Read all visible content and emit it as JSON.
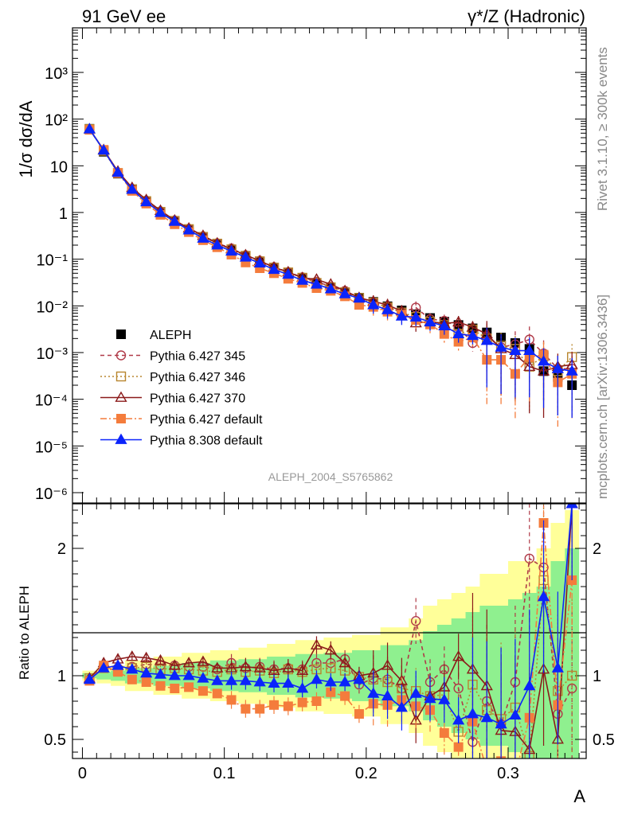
{
  "header": {
    "left": "91 GeV ee",
    "right": "γ*/Z (Hadronic)"
  },
  "side_labels": {
    "top": "Rivet 3.1.10, ≥ 300k events",
    "bottom": "mcplots.cern.ch [arXiv:1306.3436]"
  },
  "watermark": "ALEPH_2004_S5765862",
  "colors": {
    "ALEPH": "#000000",
    "P345": "#b03a48",
    "P346": "#b8862e",
    "P370": "#8b1a1a",
    "P6def": "#f47c3c",
    "P8def": "#0b24fb",
    "band_outer": "#ffff99",
    "band_inner": "#8ff08f"
  },
  "chart_data": [
    {
      "type": "line",
      "ylabel": "1/σ  dσ/dA",
      "yscale": "log",
      "ylim": [
        6e-07,
        9000
      ],
      "xlim": [
        -0.007,
        0.355
      ],
      "yticks": [
        "10⁻⁶",
        "10⁻⁵",
        "10⁻⁴",
        "10⁻³",
        "10⁻²",
        "10⁻¹",
        "1",
        "10",
        "10²",
        "10³"
      ],
      "legend": {
        "placement": "bottom-left"
      },
      "x": [
        0.005,
        0.015,
        0.025,
        0.035,
        0.045,
        0.055,
        0.065,
        0.075,
        0.085,
        0.095,
        0.105,
        0.115,
        0.125,
        0.135,
        0.145,
        0.155,
        0.165,
        0.175,
        0.185,
        0.195,
        0.205,
        0.215,
        0.225,
        0.235,
        0.245,
        0.255,
        0.265,
        0.275,
        0.285,
        0.295,
        0.305,
        0.315,
        0.325,
        0.335,
        0.345
      ],
      "series": [
        {
          "name": "ALEPH",
          "marker": "square",
          "values": [
            62,
            20,
            6.8,
            3.0,
            1.65,
            0.98,
            0.63,
            0.42,
            0.29,
            0.21,
            0.155,
            0.115,
            0.087,
            0.065,
            0.05,
            0.039,
            0.03,
            0.024,
            0.019,
            0.015,
            0.0122,
            0.0098,
            0.008,
            0.0066,
            0.0055,
            0.0046,
            0.0039,
            0.0033,
            0.0027,
            0.0021,
            0.0016,
            0.0012,
            0.0004,
            0.0003,
            0.0002
          ]
        },
        {
          "name": "Pythia 6.427 345",
          "marker": "open-circle",
          "values": [
            60,
            21.5,
            7.2,
            3.2,
            1.8,
            1.06,
            0.68,
            0.45,
            0.31,
            0.22,
            0.17,
            0.122,
            0.093,
            0.068,
            0.053,
            0.041,
            0.033,
            0.026,
            0.021,
            0.014,
            0.012,
            0.0095,
            0.0072,
            0.0092,
            0.0052,
            0.0048,
            0.0035,
            0.0016,
            0.0022,
            0.0013,
            0.0015,
            0.0019,
            0.00096,
            0.00045,
            0.00045
          ]
        },
        {
          "name": "Pythia 6.427 346",
          "marker": "open-square",
          "values": [
            61,
            21,
            7.0,
            3.15,
            1.75,
            1.03,
            0.66,
            0.44,
            0.3,
            0.215,
            0.162,
            0.118,
            0.09,
            0.066,
            0.052,
            0.04,
            0.031,
            0.025,
            0.0195,
            0.0148,
            0.0118,
            0.0093,
            0.0072,
            0.0058,
            0.0046,
            0.0039,
            0.0025,
            0.0031,
            0.002,
            0.0014,
            0.0012,
            0.0005,
            0.00085,
            0.0004,
            0.0008
          ]
        },
        {
          "name": "Pythia 6.427 370",
          "marker": "open-triangle",
          "values": [
            61,
            22,
            7.6,
            3.4,
            1.87,
            1.1,
            0.68,
            0.46,
            0.32,
            0.22,
            0.165,
            0.123,
            0.092,
            0.067,
            0.053,
            0.04,
            0.037,
            0.029,
            0.021,
            0.015,
            0.0125,
            0.0105,
            0.0077,
            0.0043,
            0.0046,
            0.0042,
            0.0045,
            0.0035,
            0.0025,
            0.0012,
            0.0009,
            0.0005,
            0.0004,
            0.0005,
            0.00055
          ]
        },
        {
          "name": "Pythia 6.427 default",
          "marker": "filled-square",
          "values": [
            59,
            22,
            7.0,
            2.9,
            1.55,
            0.89,
            0.56,
            0.38,
            0.255,
            0.18,
            0.125,
            0.085,
            0.064,
            0.05,
            0.038,
            0.031,
            0.024,
            0.021,
            0.016,
            0.0105,
            0.0095,
            0.0075,
            0.0065,
            0.005,
            0.004,
            0.0025,
            0.0017,
            0.0021,
            0.0007,
            0.0007,
            0.00035,
            0.0008,
            0.0009,
            0.00023,
            0.00035
          ]
        },
        {
          "name": "Pythia 8.308 default",
          "marker": "filled-triangle",
          "values": [
            61,
            21.5,
            7.2,
            3.1,
            1.68,
            0.99,
            0.64,
            0.42,
            0.28,
            0.2,
            0.148,
            0.11,
            0.082,
            0.06,
            0.047,
            0.035,
            0.029,
            0.023,
            0.018,
            0.0145,
            0.0105,
            0.0082,
            0.006,
            0.0057,
            0.0045,
            0.0037,
            0.0025,
            0.0023,
            0.0018,
            0.0013,
            0.0011,
            0.0011,
            0.00065,
            0.00045,
            0.0004
          ]
        }
      ]
    },
    {
      "type": "line",
      "xlabel": "A",
      "ylabel": "Ratio to ALEPH",
      "ylim": [
        0.35,
        2.35
      ],
      "xlim": [
        -0.007,
        0.355
      ],
      "xticks": [
        "0",
        "0.1",
        "0.2",
        "0.3"
      ],
      "yticks": [
        "0.5",
        "1",
        "2"
      ],
      "x": [
        0.005,
        0.015,
        0.025,
        0.035,
        0.045,
        0.055,
        0.065,
        0.075,
        0.085,
        0.095,
        0.105,
        0.115,
        0.125,
        0.135,
        0.145,
        0.155,
        0.165,
        0.175,
        0.185,
        0.195,
        0.205,
        0.215,
        0.225,
        0.235,
        0.245,
        0.255,
        0.265,
        0.275,
        0.285,
        0.295,
        0.305,
        0.315,
        0.325,
        0.335,
        0.345
      ],
      "bands": {
        "outer": [
          0.04,
          0.06,
          0.08,
          0.12,
          0.12,
          0.15,
          0.15,
          0.18,
          0.18,
          0.2,
          0.2,
          0.22,
          0.22,
          0.25,
          0.25,
          0.28,
          0.28,
          0.3,
          0.3,
          0.32,
          0.32,
          0.38,
          0.38,
          0.45,
          0.55,
          0.6,
          0.65,
          0.7,
          0.8,
          0.8,
          0.9,
          0.9,
          1.0,
          1.2,
          1.3
        ],
        "inner": [
          0.02,
          0.03,
          0.04,
          0.06,
          0.06,
          0.08,
          0.08,
          0.1,
          0.1,
          0.12,
          0.12,
          0.13,
          0.13,
          0.15,
          0.15,
          0.17,
          0.17,
          0.18,
          0.18,
          0.2,
          0.2,
          0.24,
          0.24,
          0.28,
          0.35,
          0.4,
          0.45,
          0.5,
          0.55,
          0.55,
          0.6,
          0.65,
          0.7,
          0.9,
          1.0
        ]
      },
      "series": [
        {
          "name": "Pythia 6.427 345",
          "marker": "open-circle",
          "values": [
            0.97,
            1.08,
            1.06,
            1.07,
            1.09,
            1.08,
            1.08,
            1.07,
            1.07,
            1.05,
            1.1,
            1.06,
            1.07,
            1.05,
            1.06,
            1.05,
            1.1,
            1.1,
            1.13,
            0.93,
            0.98,
            0.97,
            0.9,
            1.43,
            0.95,
            1.05,
            0.9,
            0.48,
            0.8,
            0.62,
            0.95,
            1.92,
            1.85,
            0.7,
            0.9
          ]
        },
        {
          "name": "Pythia 6.427 346",
          "marker": "open-square",
          "values": [
            0.98,
            1.06,
            1.04,
            1.06,
            1.07,
            1.05,
            1.06,
            1.05,
            1.04,
            1.03,
            1.05,
            1.03,
            1.04,
            1.02,
            1.05,
            1.03,
            1.05,
            1.06,
            1.04,
            0.99,
            0.97,
            0.95,
            0.9,
            0.88,
            0.84,
            0.85,
            0.56,
            0.93,
            0.73,
            0.66,
            0.75,
            0.37,
            1.75,
            0.88,
            1.0
          ]
        },
        {
          "name": "Pythia 6.427 370",
          "marker": "open-triangle",
          "values": [
            0.98,
            1.1,
            1.13,
            1.15,
            1.14,
            1.12,
            1.08,
            1.1,
            1.11,
            1.06,
            1.06,
            1.07,
            1.06,
            1.04,
            1.06,
            1.04,
            1.24,
            1.2,
            1.1,
            1.0,
            1.02,
            1.08,
            0.96,
            0.65,
            0.84,
            0.91,
            1.15,
            1.05,
            0.92,
            0.57,
            0.56,
            0.42,
            1.05,
            0.5,
            2.35
          ]
        },
        {
          "name": "Pythia 6.427 default",
          "marker": "filled-square",
          "values": [
            0.96,
            1.08,
            1.03,
            0.97,
            0.95,
            0.92,
            0.9,
            0.91,
            0.88,
            0.86,
            0.81,
            0.74,
            0.74,
            0.77,
            0.76,
            0.79,
            0.8,
            0.87,
            0.84,
            0.7,
            0.78,
            0.77,
            0.81,
            0.76,
            0.73,
            0.55,
            0.44,
            0.64,
            0.26,
            0.33,
            0.22,
            0.67,
            2.2,
            0.77,
            1.75
          ]
        },
        {
          "name": "Pythia 8.308 default",
          "marker": "filled-triangle",
          "values": [
            0.97,
            1.06,
            1.08,
            1.05,
            1.02,
            1.01,
            1.0,
            1.0,
            0.98,
            0.96,
            0.96,
            0.96,
            0.95,
            0.94,
            0.94,
            0.9,
            0.97,
            0.95,
            0.95,
            0.97,
            0.86,
            0.84,
            0.75,
            0.86,
            0.82,
            0.81,
            0.65,
            0.7,
            0.67,
            0.62,
            0.69,
            0.92,
            1.62,
            1.06,
            2.35
          ]
        }
      ]
    }
  ]
}
